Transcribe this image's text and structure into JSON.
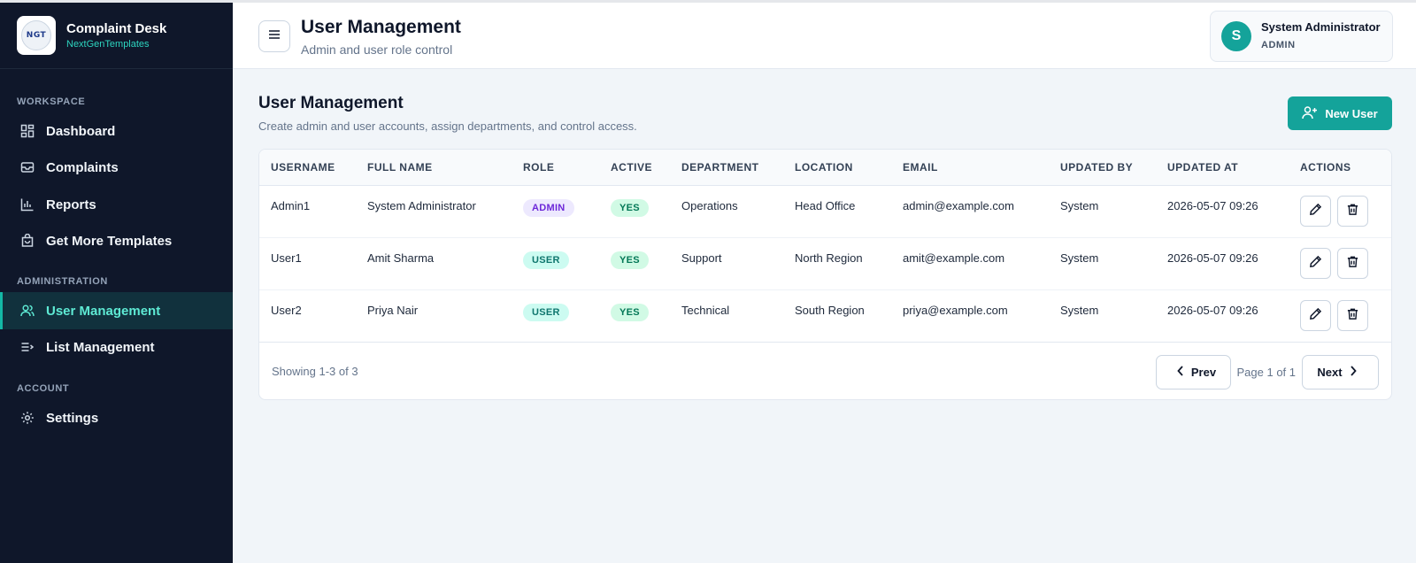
{
  "brand": {
    "title": "Complaint Desk",
    "subtitle": "NextGenTemplates",
    "logo_text": "NGT"
  },
  "sidebar": {
    "sections": [
      "WORKSPACE",
      "ADMINISTRATION",
      "ACCOUNT"
    ],
    "items": [
      {
        "label": "Dashboard",
        "icon": "dashboard-icon"
      },
      {
        "label": "Complaints",
        "icon": "complaints-icon"
      },
      {
        "label": "Reports",
        "icon": "reports-icon"
      },
      {
        "label": "Get More Templates",
        "icon": "templates-icon"
      },
      {
        "label": "User Management",
        "icon": "users-icon",
        "active": true
      },
      {
        "label": "List Management",
        "icon": "list-icon"
      },
      {
        "label": "Settings",
        "icon": "gear-icon"
      }
    ]
  },
  "header": {
    "title": "User Management",
    "subtitle": "Admin and user role control",
    "user": {
      "initial": "S",
      "name": "System Administrator",
      "role": "ADMIN"
    }
  },
  "main": {
    "title": "User Management",
    "subtitle": "Create admin and user accounts, assign departments, and control access.",
    "new_user_label": "New User"
  },
  "table": {
    "columns": [
      "USERNAME",
      "FULL NAME",
      "ROLE",
      "ACTIVE",
      "DEPARTMENT",
      "LOCATION",
      "EMAIL",
      "UPDATED BY",
      "UPDATED AT",
      "ACTIONS"
    ],
    "rows": [
      {
        "username": "Admin1",
        "full_name": "System Administrator",
        "role": "ADMIN",
        "active": "YES",
        "department": "Operations",
        "location": "Head Office",
        "email": "admin@example.com",
        "updated_by": "System",
        "updated_at": "2026-05-07 09:26"
      },
      {
        "username": "User1",
        "full_name": "Amit Sharma",
        "role": "USER",
        "active": "YES",
        "department": "Support",
        "location": "North Region",
        "email": "amit@example.com",
        "updated_by": "System",
        "updated_at": "2026-05-07 09:26"
      },
      {
        "username": "User2",
        "full_name": "Priya Nair",
        "role": "USER",
        "active": "YES",
        "department": "Technical",
        "location": "South Region",
        "email": "priya@example.com",
        "updated_by": "System",
        "updated_at": "2026-05-07 09:26"
      }
    ]
  },
  "pagination": {
    "showing": "Showing 1-3 of 3",
    "prev_label": "Prev",
    "page_info": "Page 1 of 1",
    "next_label": "Next"
  },
  "colors": {
    "accent": "#14a39a",
    "sidebar_bg": "#0f172a",
    "active_text": "#5eead4"
  }
}
